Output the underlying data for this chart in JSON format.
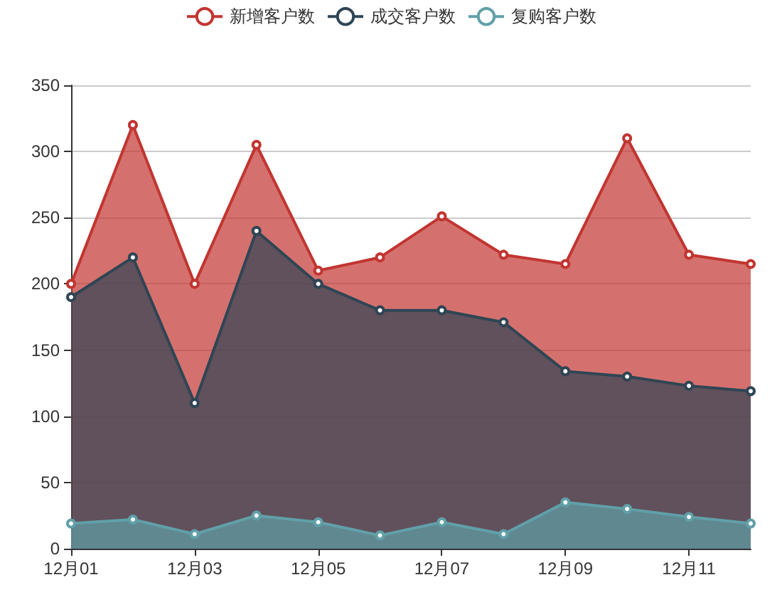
{
  "chart_data": {
    "type": "area",
    "categories": [
      "12月01",
      null,
      "12月03",
      null,
      "12月05",
      null,
      "12月07",
      null,
      "12月09",
      null,
      "12月11",
      null
    ],
    "series": [
      {
        "name": "新增客户数",
        "color": "#c23531",
        "values": [
          200,
          320,
          200,
          305,
          210,
          220,
          251,
          222,
          215,
          310,
          222,
          215
        ]
      },
      {
        "name": "成交客户数",
        "color": "#2f4554",
        "values": [
          190,
          220,
          110,
          240,
          200,
          180,
          180,
          171,
          134,
          130,
          123,
          119
        ]
      },
      {
        "name": "复购客户数",
        "color": "#61a0a8",
        "values": [
          19,
          22,
          11,
          25,
          20,
          10,
          20,
          11,
          35,
          30,
          24,
          19
        ]
      }
    ],
    "ylim": [
      0,
      350
    ],
    "yticks": [
      0,
      50,
      100,
      150,
      200,
      250,
      300,
      350
    ],
    "grid": "y",
    "legend": "top",
    "marker": "circle",
    "line_style": "solid"
  }
}
